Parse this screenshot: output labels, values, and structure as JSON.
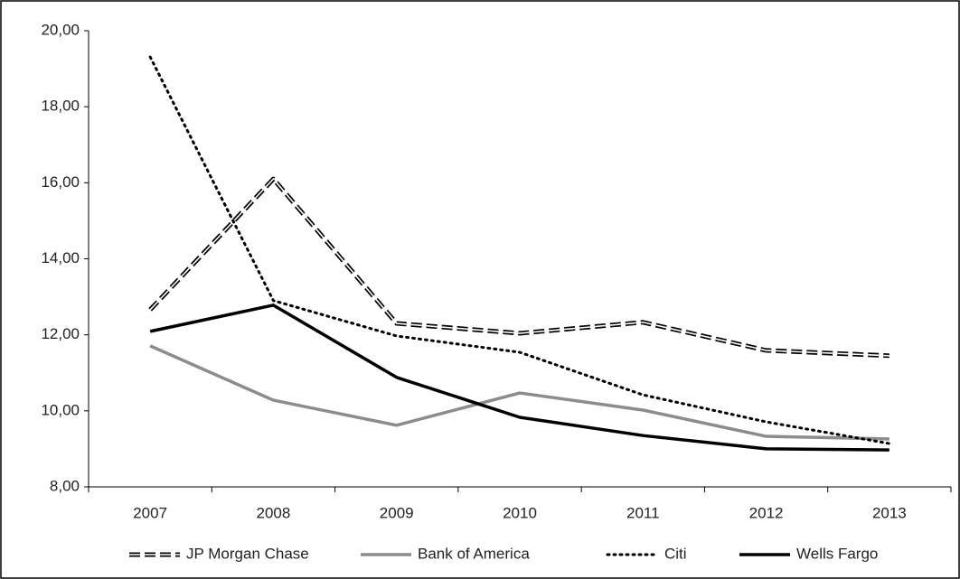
{
  "chart_data": {
    "type": "line",
    "categories": [
      "2007",
      "2008",
      "2009",
      "2010",
      "2011",
      "2012",
      "2013"
    ],
    "series": [
      {
        "name": "JP Morgan Chase",
        "color": "#000000",
        "dash": "double-dashed",
        "values": [
          12.66,
          16.1,
          12.3,
          12.04,
          12.33,
          11.59,
          11.45
        ]
      },
      {
        "name": "Bank of America",
        "color": "#8c8c8c",
        "dash": "solid",
        "values": [
          11.71,
          10.28,
          9.62,
          10.47,
          10.02,
          9.33,
          9.26
        ]
      },
      {
        "name": "Citi",
        "color": "#000000",
        "dash": "dotted",
        "values": [
          19.31,
          12.9,
          11.97,
          11.54,
          10.42,
          9.71,
          9.14
        ]
      },
      {
        "name": "Wells Fargo",
        "color": "#000000",
        "dash": "solid",
        "values": [
          12.09,
          12.78,
          10.88,
          9.83,
          9.35,
          9.0,
          8.97
        ]
      }
    ],
    "ylim": [
      8,
      20
    ],
    "yticks": [
      {
        "value": 8,
        "label": "8,00"
      },
      {
        "value": 10,
        "label": "10,00"
      },
      {
        "value": 12,
        "label": "12,00"
      },
      {
        "value": 14,
        "label": "14,00"
      },
      {
        "value": 16,
        "label": "16,00"
      },
      {
        "value": 18,
        "label": "18,00"
      },
      {
        "value": 20,
        "label": "20,00"
      }
    ],
    "grid": false,
    "legend": "bottom"
  }
}
